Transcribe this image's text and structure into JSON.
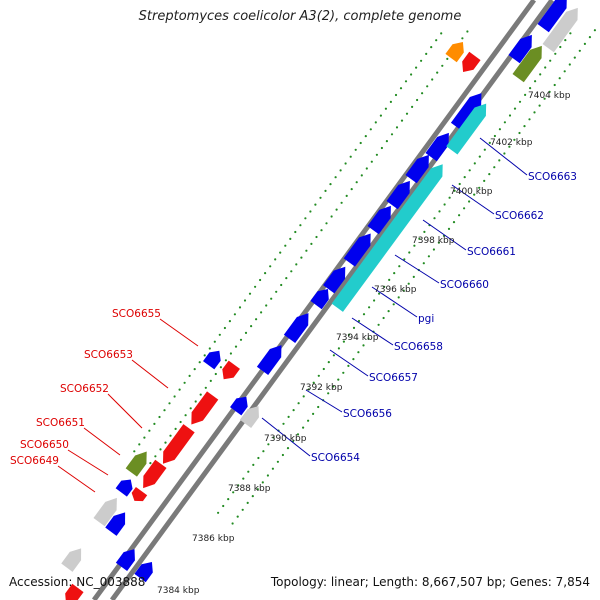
{
  "title": "Streptomyces coelicolor A3(2), complete genome",
  "footer": {
    "accession": "Accession: NC_003888",
    "topology": "Topology: linear; Length: 8,667,507 bp; Genes: 7,854"
  },
  "colors": {
    "forward_gene": "#0000ee",
    "reverse_gene": "#ee1111",
    "long_gene": "#22cccc",
    "olive_gene": "#6b8e23",
    "orange_gene": "#ff8c00",
    "gray_gene": "#cccccc",
    "backbone": "#888888",
    "tick": "#228b22",
    "forward_label": "#0000aa",
    "reverse_label": "#dd0000"
  },
  "ticks": [
    "7384 kbp",
    "7386 kbp",
    "7388 kbp",
    "7390 kbp",
    "7392 kbp",
    "7394 kbp",
    "7396 kbp",
    "7398 kbp",
    "7400 kbp",
    "7402 kbp",
    "7404 kbp"
  ],
  "forward_labels": [
    "SCO6663",
    "SCO6662",
    "SCO6661",
    "SCO6660",
    "pgi",
    "SCO6658",
    "SCO6657",
    "SCO6656",
    "SCO6654"
  ],
  "reverse_labels": [
    "SCO6655",
    "SCO6653",
    "SCO6652",
    "SCO6651",
    "SCO6650",
    "SCO6649"
  ]
}
